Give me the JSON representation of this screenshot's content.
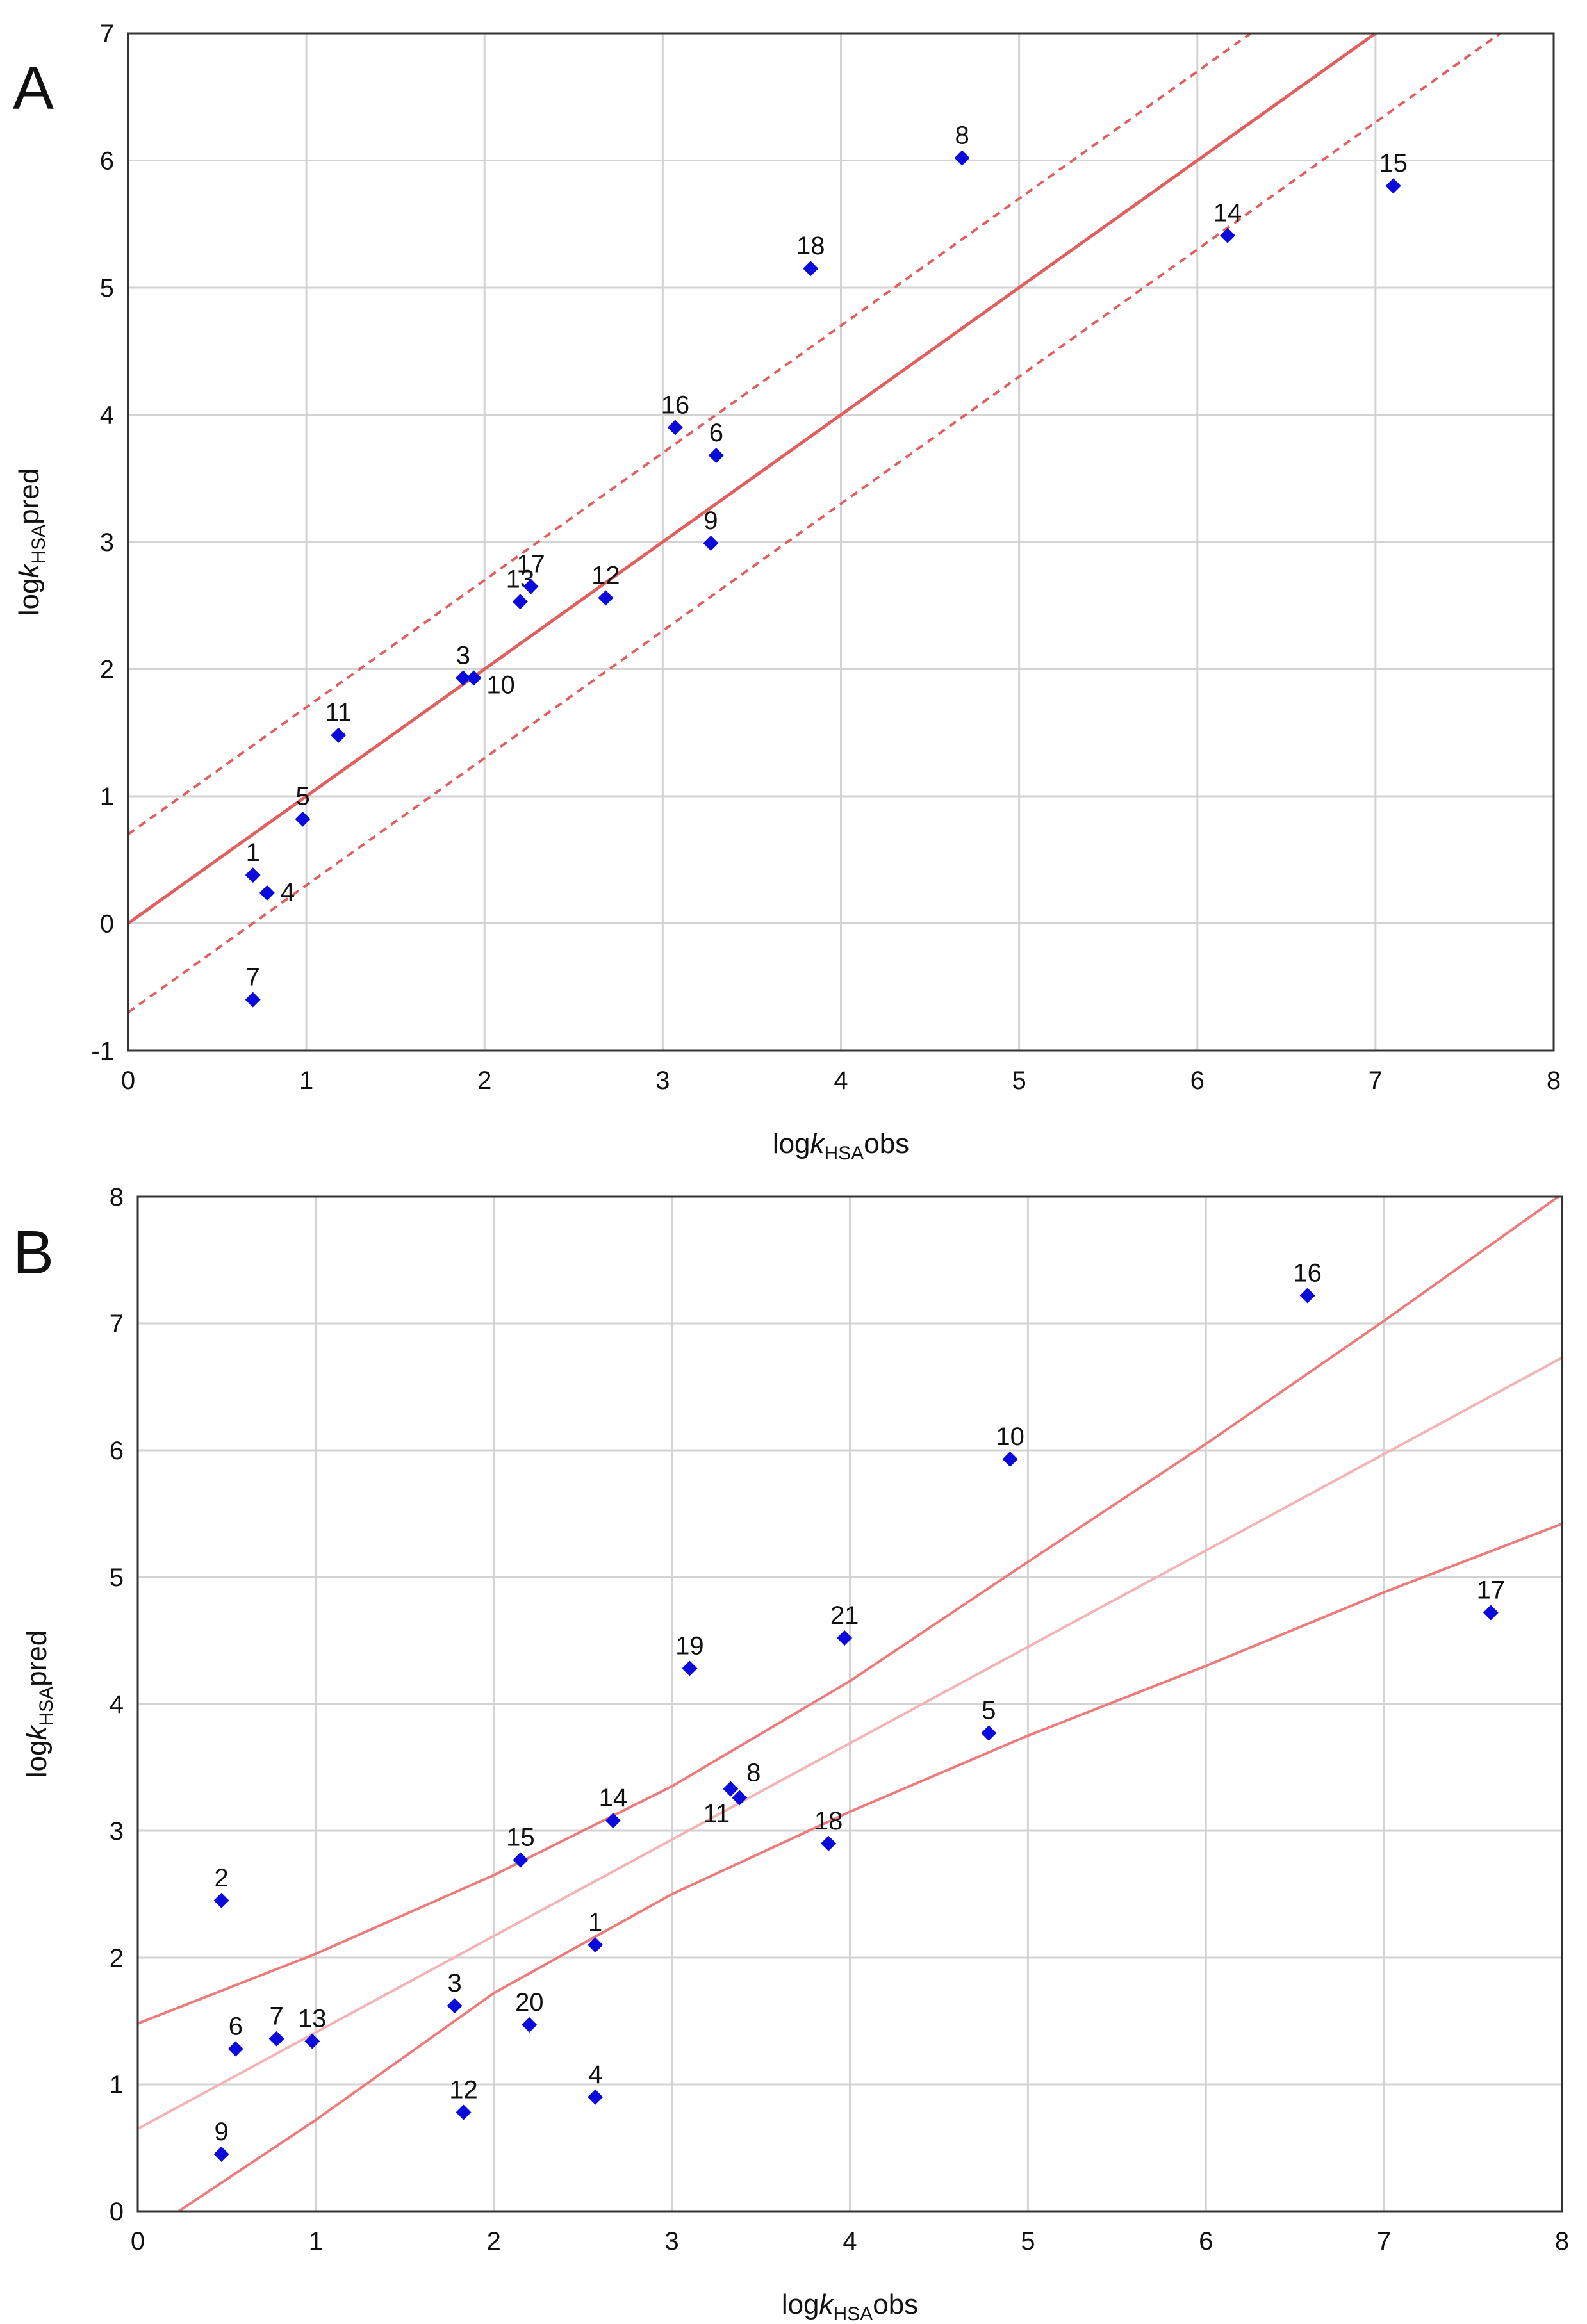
{
  "colors": {
    "marker": "#0a0adc",
    "fit_line_a": "#e06060",
    "band_a": "#e06060",
    "fit_line_b": "#f2b4b4",
    "band_b": "#ec7c7c",
    "grid": "#d3d3d3",
    "frame": "#333333"
  },
  "chart_data": [
    {
      "type": "scatter",
      "panel_label": "A",
      "xlabel": {
        "prefix": "log",
        "italic": "k",
        "sub": "HSA",
        "suffix": "obs"
      },
      "ylabel": {
        "prefix": "log",
        "italic": "k",
        "sub": "HSA",
        "suffix": "pred"
      },
      "xlim": [
        0,
        8
      ],
      "ylim": [
        -1,
        7
      ],
      "x_ticks": [
        "0",
        "1",
        "2",
        "3",
        "4",
        "5",
        "6",
        "7",
        "8"
      ],
      "y_ticks": [
        "-1",
        "0",
        "1",
        "2",
        "3",
        "4",
        "5",
        "6",
        "7"
      ],
      "grid": true,
      "fit_line": {
        "slope": 1.0,
        "intercept": 0.0
      },
      "prediction_band": {
        "type": "parallel",
        "offset": 0.7
      },
      "points": [
        {
          "label": "1",
          "x": 0.7,
          "y": 0.38
        },
        {
          "label": "4",
          "x": 0.78,
          "y": 0.24
        },
        {
          "label": "7",
          "x": 0.7,
          "y": -0.6
        },
        {
          "label": "5",
          "x": 0.98,
          "y": 0.82
        },
        {
          "label": "11",
          "x": 1.18,
          "y": 1.48
        },
        {
          "label": "3",
          "x": 1.88,
          "y": 1.93
        },
        {
          "label": "10",
          "x": 1.94,
          "y": 1.93
        },
        {
          "label": "13",
          "x": 2.2,
          "y": 2.53
        },
        {
          "label": "17",
          "x": 2.26,
          "y": 2.65
        },
        {
          "label": "12",
          "x": 2.68,
          "y": 2.56
        },
        {
          "label": "16",
          "x": 3.07,
          "y": 3.9
        },
        {
          "label": "6",
          "x": 3.3,
          "y": 3.68
        },
        {
          "label": "9",
          "x": 3.27,
          "y": 2.99
        },
        {
          "label": "18",
          "x": 3.83,
          "y": 5.15
        },
        {
          "label": "8",
          "x": 4.68,
          "y": 6.02
        },
        {
          "label": "14",
          "x": 6.17,
          "y": 5.41
        },
        {
          "label": "15",
          "x": 7.1,
          "y": 5.8
        }
      ]
    },
    {
      "type": "scatter",
      "panel_label": "B",
      "xlabel": {
        "prefix": "log",
        "italic": "k",
        "sub": "HSA",
        "suffix": "obs"
      },
      "ylabel": {
        "prefix": "log",
        "italic": "k",
        "sub": "HSA",
        "suffix": "pred"
      },
      "xlim": [
        0,
        8
      ],
      "ylim": [
        0,
        8
      ],
      "x_ticks": [
        "0",
        "1",
        "2",
        "3",
        "4",
        "5",
        "6",
        "7",
        "8"
      ],
      "y_ticks": [
        "0",
        "1",
        "2",
        "3",
        "4",
        "5",
        "6",
        "7",
        "8"
      ],
      "grid": true,
      "fit_line": {
        "slope": 0.76,
        "intercept": 0.65
      },
      "prediction_band": {
        "type": "curved",
        "upper": [
          [
            0,
            1.48
          ],
          [
            1,
            2.03
          ],
          [
            2,
            2.65
          ],
          [
            3,
            3.35
          ],
          [
            4,
            4.18
          ],
          [
            5,
            5.12
          ],
          [
            6,
            6.05
          ],
          [
            7,
            7.02
          ],
          [
            8,
            8.02
          ]
        ],
        "lower": [
          [
            0.23,
            0.0
          ],
          [
            1,
            0.72
          ],
          [
            2,
            1.72
          ],
          [
            3,
            2.5
          ],
          [
            4,
            3.15
          ],
          [
            5,
            3.75
          ],
          [
            6,
            4.3
          ],
          [
            7,
            4.88
          ],
          [
            8,
            5.42
          ]
        ]
      },
      "points": [
        {
          "label": "2",
          "x": 0.47,
          "y": 2.45
        },
        {
          "label": "6",
          "x": 0.55,
          "y": 1.28
        },
        {
          "label": "7",
          "x": 0.78,
          "y": 1.36
        },
        {
          "label": "13",
          "x": 0.98,
          "y": 1.34
        },
        {
          "label": "9",
          "x": 0.47,
          "y": 0.45
        },
        {
          "label": "3",
          "x": 1.78,
          "y": 1.62
        },
        {
          "label": "12",
          "x": 1.83,
          "y": 0.78
        },
        {
          "label": "20",
          "x": 2.2,
          "y": 1.47
        },
        {
          "label": "15",
          "x": 2.15,
          "y": 2.77
        },
        {
          "label": "1",
          "x": 2.57,
          "y": 2.1
        },
        {
          "label": "4",
          "x": 2.57,
          "y": 0.9
        },
        {
          "label": "14",
          "x": 2.67,
          "y": 3.08
        },
        {
          "label": "19",
          "x": 3.1,
          "y": 4.28
        },
        {
          "label": "8",
          "x": 3.38,
          "y": 3.26
        },
        {
          "label": "11",
          "x": 3.33,
          "y": 3.33
        },
        {
          "label": "18",
          "x": 3.88,
          "y": 2.9
        },
        {
          "label": "21",
          "x": 3.97,
          "y": 4.52
        },
        {
          "label": "5",
          "x": 4.78,
          "y": 3.77
        },
        {
          "label": "10",
          "x": 4.9,
          "y": 5.93
        },
        {
          "label": "16",
          "x": 6.57,
          "y": 7.22
        },
        {
          "label": "17",
          "x": 7.6,
          "y": 4.72
        }
      ]
    }
  ]
}
